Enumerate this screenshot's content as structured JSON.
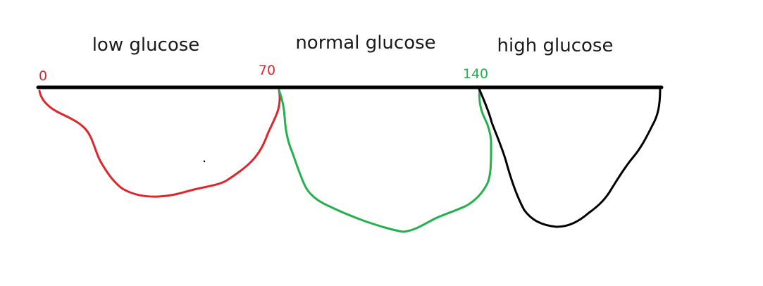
{
  "regions": {
    "low": {
      "label": "low glucose",
      "color": "#e0242b"
    },
    "normal": {
      "label": "normal glucose",
      "color": "#22b14c"
    },
    "high": {
      "label": "high glucose",
      "color": "#000000"
    }
  },
  "thresholds": {
    "start": {
      "label": "0",
      "color": "#e0242b"
    },
    "low_normal": {
      "label": "70",
      "color": "#e0242b"
    },
    "normal_high": {
      "label": "140",
      "color": "#22b14c"
    }
  },
  "axis_color": "#000000"
}
